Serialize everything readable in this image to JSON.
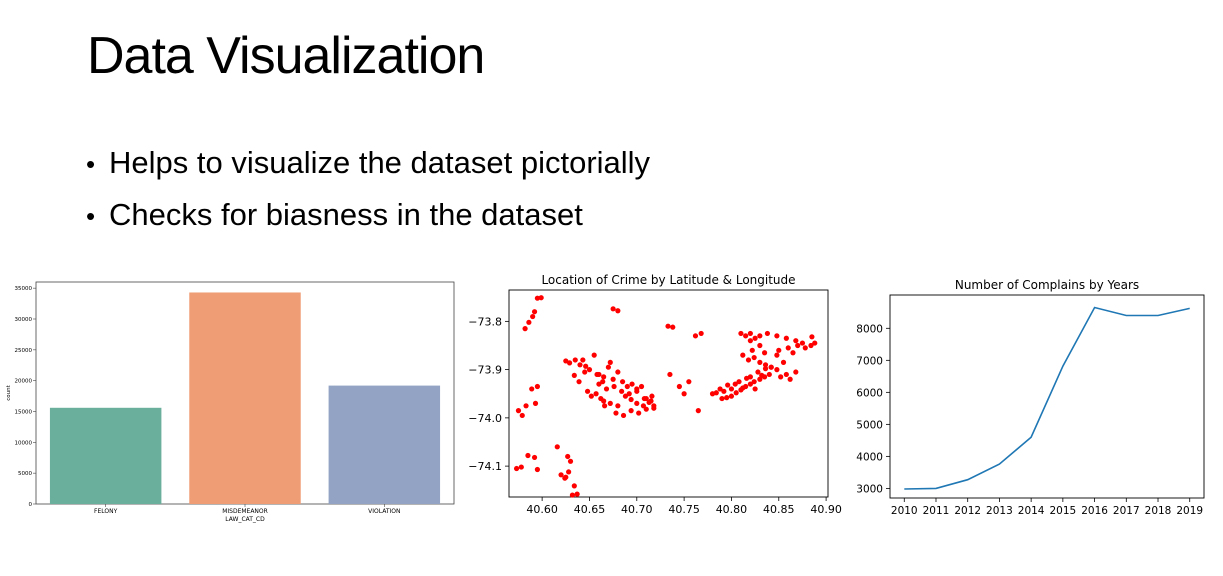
{
  "slide": {
    "title": "Data Visualization",
    "bullets": [
      "Helps to visualize the dataset pictorially",
      "Checks for biasness in the dataset"
    ]
  },
  "chart_data": [
    {
      "type": "bar",
      "title": "",
      "xlabel": "LAW_CAT_CD",
      "ylabel": "count",
      "categories": [
        "FELONY",
        "MISDEMEANOR",
        "VIOLATION"
      ],
      "values": [
        15600,
        34300,
        19200
      ],
      "colors": [
        "#6aaf9c",
        "#ef9d74",
        "#92a3c4"
      ],
      "ylim": [
        0,
        36000
      ],
      "yticks": [
        0,
        5000,
        10000,
        15000,
        20000,
        25000,
        30000,
        35000
      ],
      "grid": false
    },
    {
      "type": "scatter",
      "title": "Location of Crime by Latitude & Longitude",
      "xlabel": "",
      "ylabel": "",
      "xlim": [
        40.565,
        40.902
      ],
      "ylim": [
        -73.735,
        -74.164
      ],
      "xticks": [
        40.6,
        40.65,
        40.7,
        40.75,
        40.8,
        40.85,
        40.9
      ],
      "xtick_labels": [
        "40.60",
        "40.65",
        "40.70",
        "40.75",
        "40.80",
        "40.85",
        "40.90"
      ],
      "yticks": [
        -73.8,
        -73.9,
        -74.0,
        -74.1
      ],
      "ytick_labels": [
        "−73.8",
        "−73.9",
        "−74.0",
        "−74.1"
      ],
      "color": "#ff0000",
      "grid": false,
      "x": [
        40.595,
        40.599,
        40.582,
        40.586,
        40.59,
        40.592,
        40.575,
        40.579,
        40.583,
        40.595,
        40.589,
        40.593,
        40.578,
        40.595,
        40.573,
        40.585,
        40.592,
        40.616,
        40.62,
        40.625,
        40.627,
        40.63,
        40.634,
        40.637,
        40.632,
        40.628,
        40.624,
        40.625,
        40.629,
        40.634,
        40.639,
        40.643,
        40.646,
        40.65,
        40.655,
        40.66,
        40.665,
        40.67,
        40.675,
        40.68,
        40.685,
        40.69,
        40.695,
        40.7,
        40.705,
        40.71,
        40.715,
        40.665,
        40.672,
        40.68,
        40.688,
        40.694,
        40.7,
        40.707,
        40.713,
        40.718,
        40.66,
        40.668,
        40.676,
        40.684,
        40.692,
        40.7,
        40.708,
        40.716,
        40.678,
        40.686,
        40.694,
        40.702,
        40.71,
        40.718,
        40.658,
        40.664,
        40.672,
        40.648,
        40.652,
        40.657,
        40.662,
        40.666,
        40.635,
        40.64,
        40.645,
        40.675,
        40.68,
        40.733,
        40.738,
        40.762,
        40.768,
        40.735,
        40.745,
        40.75,
        40.755,
        40.765,
        40.78,
        40.784,
        40.788,
        40.792,
        40.796,
        40.8,
        40.804,
        40.808,
        40.812,
        40.816,
        40.82,
        40.824,
        40.828,
        40.832,
        40.836,
        40.79,
        40.795,
        40.8,
        40.805,
        40.81,
        40.815,
        40.82,
        40.825,
        40.83,
        40.835,
        40.84,
        40.81,
        40.815,
        40.82,
        40.825,
        40.83,
        40.835,
        40.812,
        40.818,
        40.824,
        40.83,
        40.836,
        40.842,
        40.848,
        40.855,
        40.85,
        40.86,
        40.865,
        40.87,
        40.875,
        40.858,
        40.862,
        40.868,
        40.842,
        40.848,
        40.852,
        40.885,
        40.888,
        40.884,
        40.878,
        40.868,
        40.858,
        40.848,
        40.838,
        40.82,
        40.83,
        40.822
      ],
      "y": [
        -73.752,
        -73.751,
        -73.815,
        -73.802,
        -73.79,
        -73.78,
        -73.985,
        -73.995,
        -73.975,
        -73.935,
        -73.94,
        -73.97,
        -74.102,
        -74.107,
        -74.105,
        -74.078,
        -74.082,
        -74.06,
        -74.118,
        -74.123,
        -74.08,
        -74.09,
        -74.141,
        -74.158,
        -74.16,
        -74.112,
        -74.125,
        -73.882,
        -73.886,
        -73.912,
        -73.925,
        -73.88,
        -73.893,
        -73.9,
        -73.87,
        -73.91,
        -73.915,
        -73.895,
        -73.92,
        -73.905,
        -73.925,
        -73.935,
        -73.93,
        -73.94,
        -73.935,
        -73.96,
        -73.965,
        -73.965,
        -73.97,
        -73.975,
        -73.955,
        -73.962,
        -73.97,
        -73.975,
        -73.968,
        -73.98,
        -73.93,
        -73.94,
        -73.935,
        -73.945,
        -73.95,
        -73.945,
        -73.96,
        -73.955,
        -73.99,
        -73.995,
        -73.985,
        -73.99,
        -73.982,
        -73.975,
        -73.91,
        -73.925,
        -73.885,
        -73.945,
        -73.955,
        -73.95,
        -73.96,
        -73.975,
        -73.88,
        -73.89,
        -73.905,
        -73.774,
        -73.778,
        -73.81,
        -73.812,
        -73.83,
        -73.825,
        -73.91,
        -73.935,
        -73.95,
        -73.925,
        -73.985,
        -73.95,
        -73.948,
        -73.94,
        -73.945,
        -73.932,
        -73.94,
        -73.93,
        -73.925,
        -73.938,
        -73.918,
        -73.915,
        -73.925,
        -73.905,
        -73.912,
        -73.898,
        -73.96,
        -73.958,
        -73.955,
        -73.948,
        -73.942,
        -73.935,
        -73.93,
        -73.94,
        -73.92,
        -73.915,
        -73.91,
        -73.825,
        -73.83,
        -73.84,
        -73.835,
        -73.85,
        -73.865,
        -73.87,
        -73.88,
        -73.875,
        -73.885,
        -73.89,
        -73.895,
        -73.87,
        -73.885,
        -73.86,
        -73.855,
        -73.865,
        -73.85,
        -73.845,
        -73.91,
        -73.92,
        -73.905,
        -73.895,
        -73.9,
        -73.915,
        -73.832,
        -73.845,
        -73.85,
        -73.855,
        -73.84,
        -73.835,
        -73.83,
        -73.825,
        -73.825,
        -73.83,
        -73.86
      ]
    },
    {
      "type": "line",
      "title": "Number of Complains by Years",
      "xlabel": "",
      "ylabel": "",
      "x": [
        2010,
        2011,
        2012,
        2013,
        2014,
        2015,
        2016,
        2017,
        2018,
        2019
      ],
      "values": [
        2980,
        3000,
        3270,
        3760,
        4600,
        6820,
        8650,
        8400,
        8400,
        8620
      ],
      "xlim": [
        2009.55,
        2019.45
      ],
      "ylim": [
        2700,
        9040
      ],
      "yticks": [
        3000,
        4000,
        5000,
        6000,
        7000,
        8000
      ],
      "color": "#1f77b4",
      "grid": false
    }
  ]
}
